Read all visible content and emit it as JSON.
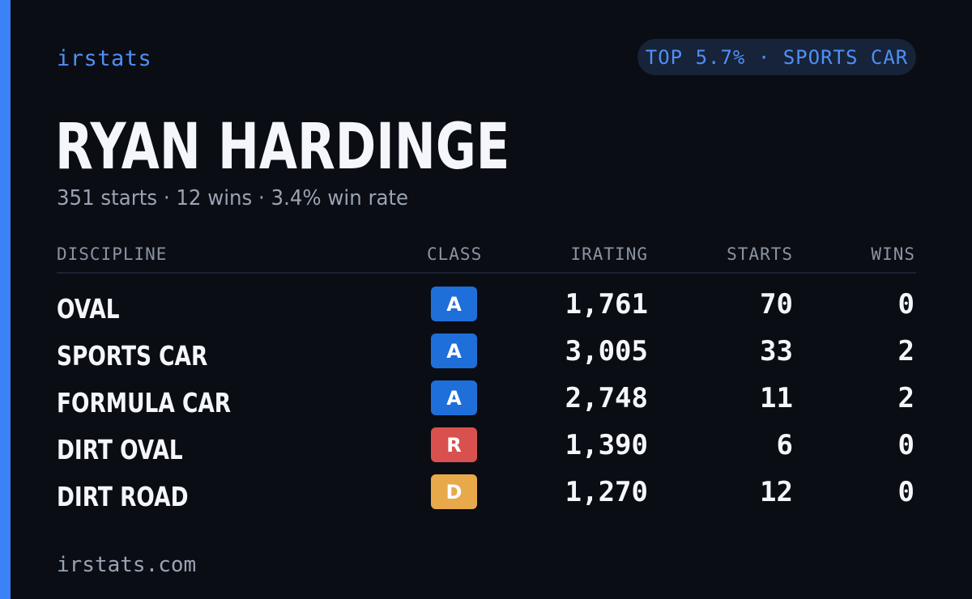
{
  "brand": "irstats",
  "badge": "TOP 5.7% · SPORTS CAR",
  "driver": {
    "name": "RYAN HARDINGE",
    "summary": "351 starts · 12 wins · 3.4% win rate"
  },
  "table": {
    "headers": {
      "discipline": "DISCIPLINE",
      "class": "CLASS",
      "irating": "IRATING",
      "starts": "STARTS",
      "wins": "WINS"
    },
    "rows": [
      {
        "discipline": "OVAL",
        "class": "A",
        "class_color": "#1e6fd9",
        "irating": "1,761",
        "starts": "70",
        "wins": "0"
      },
      {
        "discipline": "SPORTS CAR",
        "class": "A",
        "class_color": "#1e6fd9",
        "irating": "3,005",
        "starts": "33",
        "wins": "2"
      },
      {
        "discipline": "FORMULA CAR",
        "class": "A",
        "class_color": "#1e6fd9",
        "irating": "2,748",
        "starts": "11",
        "wins": "2"
      },
      {
        "discipline": "DIRT OVAL",
        "class": "R",
        "class_color": "#d9514e",
        "irating": "1,390",
        "starts": "6",
        "wins": "0"
      },
      {
        "discipline": "DIRT ROAD",
        "class": "D",
        "class_color": "#e8a94a",
        "irating": "1,270",
        "starts": "12",
        "wins": "0"
      }
    ]
  },
  "footer": "irstats.com",
  "colors": {
    "accent": "#3b82f6",
    "background": "#0a0d14"
  }
}
